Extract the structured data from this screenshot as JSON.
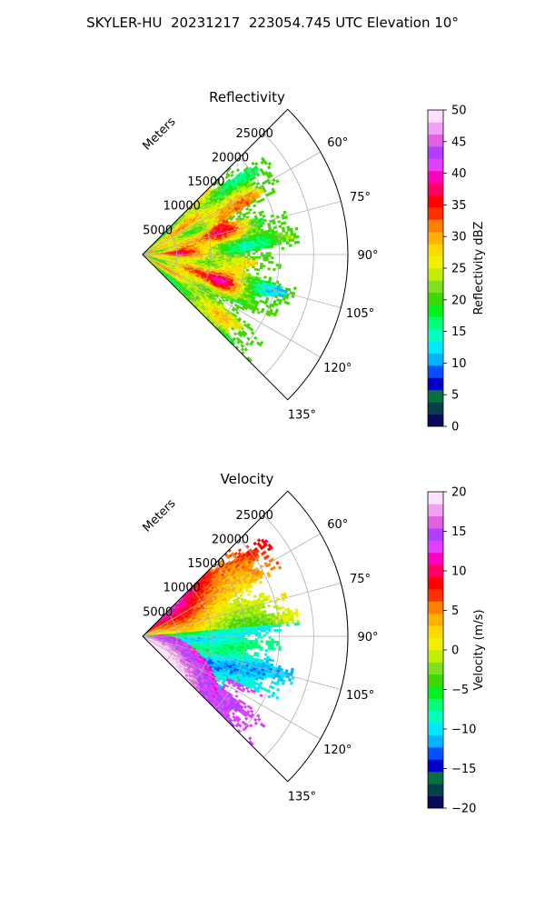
{
  "figure": {
    "title": "SKYLER-HU  20231217  223054.745 UTC Elevation 10°"
  },
  "chart_data": [
    {
      "type": "heatmap",
      "subtype": "polar-sector",
      "title": "Reflectivity",
      "range_label": "Meters",
      "range_ticks": [
        "5000",
        "10000",
        "15000",
        "20000",
        "25000"
      ],
      "range_tick_values": [
        5000,
        10000,
        15000,
        20000,
        25000
      ],
      "rmax": 30000,
      "angle_range_deg": [
        45,
        135
      ],
      "angle_ticks": [
        "60°",
        "75°",
        "90°",
        "105°",
        "120°",
        "135°"
      ],
      "angle_tick_values": [
        60,
        75,
        90,
        105,
        120,
        135
      ],
      "data_extent_m": 23000,
      "colorbar": {
        "label": "Reflectivity dBZ",
        "min": 0,
        "max": 50,
        "ticks": [
          "0",
          "5",
          "10",
          "15",
          "20",
          "25",
          "30",
          "35",
          "40",
          "45",
          "50"
        ],
        "tick_values": [
          0,
          5,
          10,
          15,
          20,
          25,
          30,
          35,
          40,
          45,
          50
        ],
        "colors": [
          "#0a0a5a",
          "#05404a",
          "#087040",
          "#0000c8",
          "#0050ff",
          "#00b4ff",
          "#00e8ff",
          "#00ffc0",
          "#00ff7a",
          "#00f020",
          "#40d800",
          "#80e020",
          "#c0f000",
          "#f0f000",
          "#ffd800",
          "#ffb000",
          "#ff8000",
          "#ff3000",
          "#ff0000",
          "#ff0060",
          "#ff00c0",
          "#e040ff",
          "#b040ff",
          "#e060e0",
          "#f0a0f0",
          "#ffe0ff"
        ]
      }
    },
    {
      "type": "heatmap",
      "subtype": "polar-sector",
      "title": "Velocity",
      "range_label": "Meters",
      "range_ticks": [
        "5000",
        "10000",
        "15000",
        "20000",
        "25000"
      ],
      "range_tick_values": [
        5000,
        10000,
        15000,
        20000,
        25000
      ],
      "rmax": 30000,
      "angle_range_deg": [
        45,
        135
      ],
      "angle_ticks": [
        "60°",
        "75°",
        "90°",
        "105°",
        "120°",
        "135°"
      ],
      "angle_tick_values": [
        60,
        75,
        90,
        105,
        120,
        135
      ],
      "data_extent_m": 23000,
      "colorbar": {
        "label": "Velocity (m/s)",
        "min": -20,
        "max": 20,
        "ticks": [
          "−20",
          "−15",
          "−10",
          "−5",
          "0",
          "5",
          "10",
          "15",
          "20"
        ],
        "tick_values": [
          -20,
          -15,
          -10,
          -5,
          0,
          5,
          10,
          15,
          20
        ],
        "colors": [
          "#0a0a5a",
          "#05404a",
          "#087040",
          "#0000c8",
          "#0050ff",
          "#00b4ff",
          "#00e8ff",
          "#00ffc0",
          "#00ff7a",
          "#00f020",
          "#40d800",
          "#80e020",
          "#c0f000",
          "#f0f000",
          "#ffd800",
          "#ffb000",
          "#ff8000",
          "#ff3000",
          "#ff0000",
          "#ff0060",
          "#ff00c0",
          "#e040ff",
          "#b040ff",
          "#e060e0",
          "#f0a0f0",
          "#ffe0ff"
        ]
      }
    }
  ]
}
